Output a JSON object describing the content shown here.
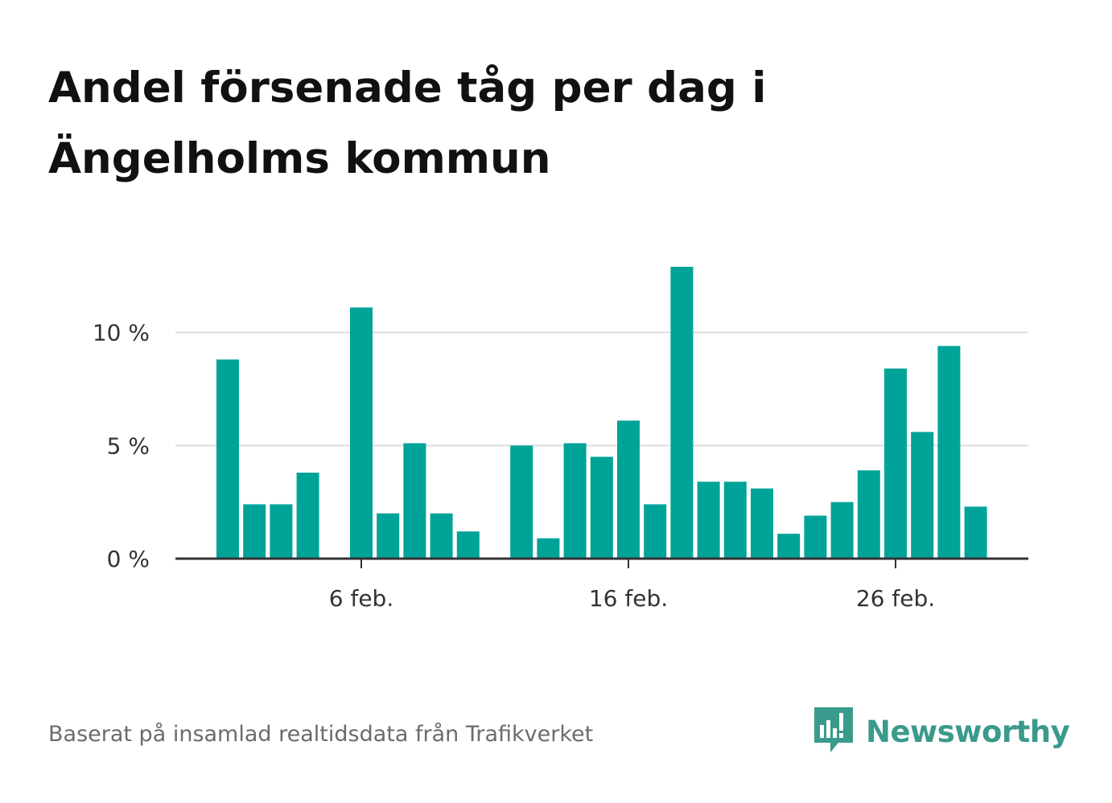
{
  "title": "Andel försenade tåg per dag i Ängelholms kommun",
  "source_note": "Baserat på insamlad realtidsdata från Trafikverket",
  "brand": {
    "name": "Newsworthy",
    "icon": "newsworthy-logo-icon",
    "color": "#3a9a8c"
  },
  "colors": {
    "bar": "#00a398",
    "grid": "#dddddd",
    "axis": "#333333",
    "tick_text": "#333333"
  },
  "chart_data": {
    "type": "bar",
    "title": "Andel försenade tåg per dag i Ängelholms kommun",
    "xlabel": "",
    "ylabel": "",
    "unit": "%",
    "ylim": [
      0,
      14.2
    ],
    "yticks": [
      0,
      5,
      10
    ],
    "ytick_labels": [
      "0 %",
      "5 %",
      "10 %"
    ],
    "xtick_labels": [
      {
        "label": "6 feb.",
        "day": 6
      },
      {
        "label": "16 feb.",
        "day": 16
      },
      {
        "label": "26 feb.",
        "day": 26
      }
    ],
    "days": [
      1,
      2,
      3,
      4,
      5,
      6,
      7,
      8,
      9,
      10,
      11,
      12,
      13,
      14,
      15,
      16,
      17,
      18,
      19,
      20,
      21,
      22,
      23,
      24,
      25,
      26,
      27,
      28,
      29,
      30
    ],
    "values": [
      8.8,
      2.4,
      2.4,
      3.8,
      null,
      11.1,
      2.0,
      5.1,
      2.0,
      1.2,
      null,
      5.0,
      0.9,
      5.1,
      4.5,
      6.1,
      2.4,
      12.9,
      3.4,
      3.4,
      3.1,
      1.1,
      1.9,
      2.5,
      3.9,
      8.4,
      5.6,
      9.4,
      2.3,
      null
    ],
    "grid": true
  }
}
